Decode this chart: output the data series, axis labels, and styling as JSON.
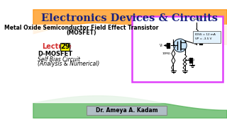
{
  "title": "Electronics Devices & Circuits",
  "subtitle": "Metal Oxide Semiconductor Field Effect Transistor",
  "subtitle2": "(MOSFET)",
  "lecture_label": "Lecture",
  "lecture_num": "29",
  "line1": "D-MOSFET",
  "line2": "Self Bias Circuit",
  "line3": "(Analysis & Numerical)",
  "author": "Dr. Ameya A. Kadam",
  "bg_color": "#ffffff",
  "title_color": "#1a237e",
  "subtitle_color": "#000000",
  "lecture_color": "#d32f2f",
  "text_color": "#000000",
  "box_color": "#ffff00",
  "circuit_box_color": "#e040fb",
  "stripe_orange": "#ff8c00",
  "stripe_green": "#4caf50",
  "author_box_color": "#b0bec5",
  "mosfet_highlight": "#bbdefb"
}
